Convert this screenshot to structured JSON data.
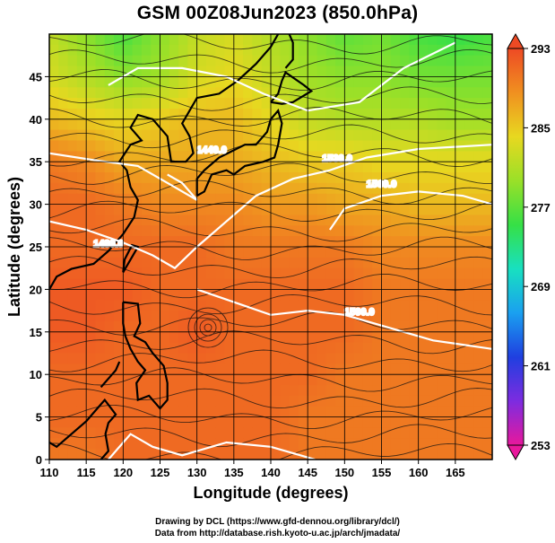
{
  "title": "GSM 00Z08Jun2023 (850.0hPa)",
  "axes": {
    "xlabel": "Longitude (degrees)",
    "ylabel": "Latitude  (degrees)",
    "xlim": [
      110,
      170
    ],
    "ylim": [
      0,
      50
    ],
    "xticks": [
      "110",
      "115",
      "120",
      "125",
      "130",
      "135",
      "140",
      "145",
      "150",
      "155",
      "160",
      "165"
    ],
    "yticks": [
      "0",
      "5",
      "10",
      "15",
      "20",
      "25",
      "30",
      "35",
      "40",
      "45"
    ],
    "grid": true
  },
  "colorbar": {
    "ticks": [
      "293",
      "285",
      "277",
      "269",
      "261",
      "253"
    ],
    "range": [
      253,
      293
    ],
    "colors": [
      "#e8189c",
      "#7d2ce0",
      "#1f3fe0",
      "#1aa0f0",
      "#18e0c0",
      "#36e046",
      "#9ae028",
      "#e8d820",
      "#f09020",
      "#ee4a24"
    ]
  },
  "contours": [
    {
      "label": "1440.0",
      "lon": 132,
      "lat": 36
    },
    {
      "label": "1480.0",
      "lon": 118,
      "lat": 25
    },
    {
      "label": "1500.0",
      "lon": 152,
      "lat": 17
    },
    {
      "label": "1530.0",
      "lon": 149,
      "lat": 35
    },
    {
      "label": "1560.0",
      "lon": 155,
      "lat": 32
    }
  ],
  "credits": [
    "Drawing by DCL (https://www.gfd-dennou.org/library/dcl/)",
    "Data from http://database.rish.kyoto-u.ac.jp/arch/jmadata/"
  ],
  "chart_data": {
    "type": "heatmap",
    "title": "GSM 00Z08Jun2023 (850.0hPa)",
    "xlabel": "Longitude (degrees)",
    "ylabel": "Latitude  (degrees)",
    "x": [
      110,
      115,
      120,
      125,
      130,
      135,
      140,
      145,
      150,
      155,
      160,
      165,
      170
    ],
    "y": [
      50,
      45,
      40,
      35,
      30,
      25,
      20,
      15,
      10,
      5,
      0
    ],
    "values": [
      [
        282,
        279,
        276,
        279,
        282,
        283,
        281,
        279,
        277,
        278,
        276,
        275,
        276
      ],
      [
        283,
        281,
        279,
        280,
        283,
        284,
        282,
        280,
        279,
        279,
        278,
        278,
        278
      ],
      [
        286,
        285,
        284,
        285,
        286,
        286,
        284,
        282,
        281,
        281,
        281,
        280,
        280
      ],
      [
        290,
        289,
        287,
        287,
        287,
        287,
        286,
        285,
        285,
        284,
        284,
        284,
        284
      ],
      [
        291,
        291,
        290,
        289,
        289,
        289,
        288,
        288,
        287,
        287,
        286,
        286,
        286
      ],
      [
        291,
        291,
        291,
        291,
        291,
        290,
        290,
        290,
        290,
        289,
        289,
        289,
        289
      ],
      [
        292,
        292,
        292,
        291,
        291,
        291,
        291,
        291,
        291,
        290,
        290,
        290,
        290
      ],
      [
        292,
        292,
        291,
        291,
        292,
        291,
        291,
        291,
        291,
        290,
        290,
        290,
        290
      ],
      [
        291,
        291,
        291,
        291,
        291,
        291,
        291,
        291,
        290,
        290,
        290,
        290,
        290
      ],
      [
        291,
        291,
        291,
        291,
        291,
        291,
        291,
        290,
        290,
        290,
        290,
        290,
        290
      ],
      [
        290,
        290,
        291,
        291,
        291,
        291,
        291,
        290,
        290,
        290,
        290,
        290,
        290
      ]
    ],
    "zlim": [
      253,
      293
    ],
    "colorbar_ticks": [
      293,
      285,
      277,
      269,
      261,
      253
    ],
    "grid": true
  }
}
